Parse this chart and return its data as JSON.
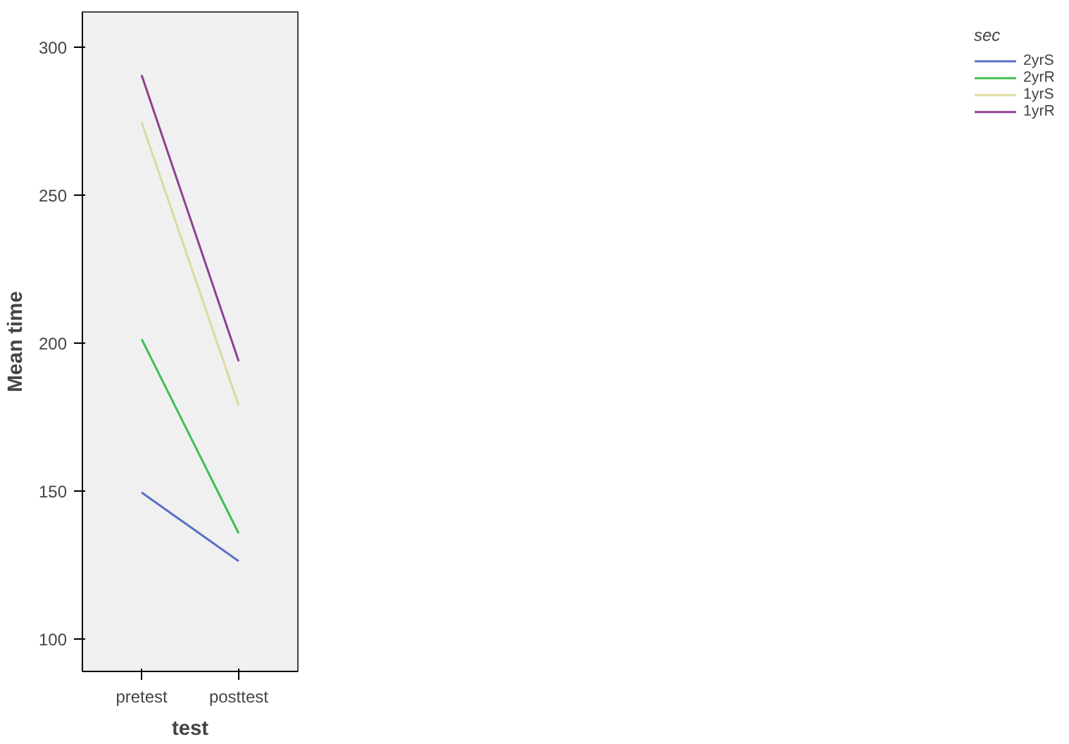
{
  "chart_data": {
    "type": "line",
    "xlabel": "test",
    "ylabel": "Mean time",
    "legend_title": "sec",
    "categories": [
      "pretest",
      "posttest"
    ],
    "series": [
      {
        "name": "2yrS",
        "color": "#5a6fc4",
        "values": [
          149.5,
          126.3
        ]
      },
      {
        "name": "2yrR",
        "color": "#3fbf4f",
        "values": [
          201.4,
          135.7
        ]
      },
      {
        "name": "1yrS",
        "color": "#ddd9a0",
        "values": [
          274.7,
          178.9
        ]
      },
      {
        "name": "1yrR",
        "color": "#8e3f8e",
        "values": [
          290.7,
          193.9
        ]
      }
    ],
    "ylim": [
      89,
      312
    ],
    "yticks": [
      100,
      150,
      200,
      250,
      300
    ],
    "grid": false,
    "legend": "right",
    "marker": "none",
    "line_style": "solid"
  }
}
